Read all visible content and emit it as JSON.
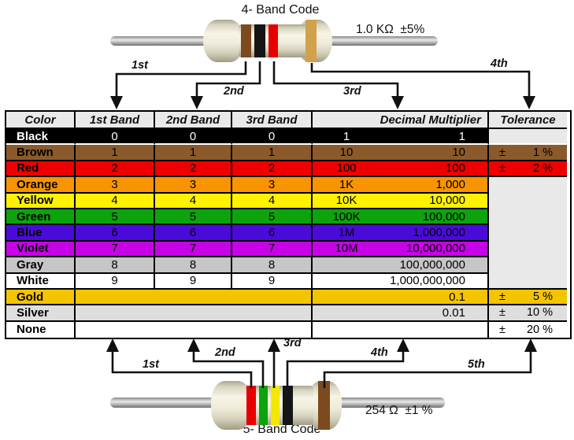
{
  "top_resistor": {
    "title": "4- Band Code",
    "value_label": "1.0 KΩ  ±5%",
    "band_labels": [
      "1st",
      "2nd",
      "3rd",
      "4th"
    ],
    "bands": [
      "brown",
      "black",
      "red",
      "gold"
    ]
  },
  "bottom_resistor": {
    "title": "5- Band Code",
    "value_label": "254 Ω  ±1 %",
    "band_labels": [
      "1st",
      "2nd",
      "3rd",
      "4th",
      "5th"
    ],
    "bands": [
      "red",
      "green",
      "yellow",
      "black",
      "brown"
    ]
  },
  "band_palette": {
    "brown": "#7C4A1E",
    "black": "#151515",
    "red": "#E60000",
    "gold": "#D2A14B",
    "green": "#0CA30C",
    "yellow": "#F2E800"
  },
  "table": {
    "headers": [
      "Color",
      "1st Band",
      "2nd Band",
      "3rd Band",
      "Decimal Multiplier",
      "Tolerance"
    ],
    "tolerance_sign": "±",
    "rows": [
      {
        "name": "Black",
        "bg": "#000000",
        "fg": "#ffffff",
        "tol_bg": "#E9E9E9",
        "d1": "0",
        "d2": "0",
        "d3": "0",
        "mult_short": "1",
        "mult_full": "1",
        "tol": "",
        "gap_below": true
      },
      {
        "name": "Brown",
        "bg": "#8B5A2B",
        "fg": "#000000",
        "tol_bg": "#8B5A2B",
        "d1": "1",
        "d2": "1",
        "d3": "1",
        "mult_short": "10",
        "mult_full": "10",
        "tol": "1 %"
      },
      {
        "name": "Red",
        "bg": "#EE0000",
        "fg": "#000000",
        "tol_bg": "#EE0000",
        "d1": "2",
        "d2": "2",
        "d3": "2",
        "mult_short": "100",
        "mult_full": "100",
        "tol": "2 %"
      },
      {
        "name": "Orange",
        "bg": "#F79400",
        "fg": "#000000",
        "tol_bg": "#E9E9E9",
        "d1": "3",
        "d2": "3",
        "d3": "3",
        "mult_short": "1K",
        "mult_full": "1,000",
        "tol": "",
        "tol_open": true
      },
      {
        "name": "Yellow",
        "bg": "#FFF100",
        "fg": "#000000",
        "tol_bg": "#E9E9E9",
        "d1": "4",
        "d2": "4",
        "d3": "4",
        "mult_short": "10K",
        "mult_full": "10,000",
        "tol": "",
        "tol_open": true
      },
      {
        "name": "Green",
        "bg": "#0CA30C",
        "fg": "#000000",
        "tol_bg": "#E9E9E9",
        "d1": "5",
        "d2": "5",
        "d3": "5",
        "mult_short": "100K",
        "mult_full": "100,000",
        "tol": "",
        "tol_open": true
      },
      {
        "name": "Blue",
        "bg": "#4A0BD9",
        "fg": "#000000",
        "tol_bg": "#E9E9E9",
        "d1": "6",
        "d2": "6",
        "d3": "6",
        "mult_short": "1M",
        "mult_full": "1,000,000",
        "tol": "",
        "tol_open": true
      },
      {
        "name": "Violet",
        "bg": "#C603E6",
        "fg": "#000000",
        "tol_bg": "#E9E9E9",
        "d1": "7",
        "d2": "7",
        "d3": "7",
        "mult_short": "10M",
        "mult_full": "10,000,000",
        "tol": "",
        "tol_open": true
      },
      {
        "name": "Gray",
        "bg": "#C6C6C6",
        "fg": "#000000",
        "tol_bg": "#E9E9E9",
        "d1": "8",
        "d2": "8",
        "d3": "8",
        "mult_short": "",
        "mult_full": "100,000,000",
        "tol": "",
        "tol_open": true
      },
      {
        "name": "White",
        "bg": "#FFFFFF",
        "fg": "#000000",
        "tol_bg": "#E9E9E9",
        "d1": "9",
        "d2": "9",
        "d3": "9",
        "mult_short": "",
        "mult_full": "1,000,000,000",
        "tol": ""
      },
      {
        "name": "Gold",
        "bg": "#F5C400",
        "fg": "#000000",
        "tol_bg": "#F5C400",
        "merged": true,
        "mult_short": "",
        "mult_full": "0.1",
        "tol": "5 %"
      },
      {
        "name": "Silver",
        "bg": "#DEDEDE",
        "fg": "#000000",
        "tol_bg": "#DEDEDE",
        "merged": true,
        "mult_short": "",
        "mult_full": "0.01",
        "tol": "10 %"
      },
      {
        "name": "None",
        "bg": "#FFFFFF",
        "fg": "#000000",
        "tol_bg": "#FFFFFF",
        "merged": true,
        "mult_short": "",
        "mult_full": "",
        "tol": "20 %"
      }
    ]
  }
}
